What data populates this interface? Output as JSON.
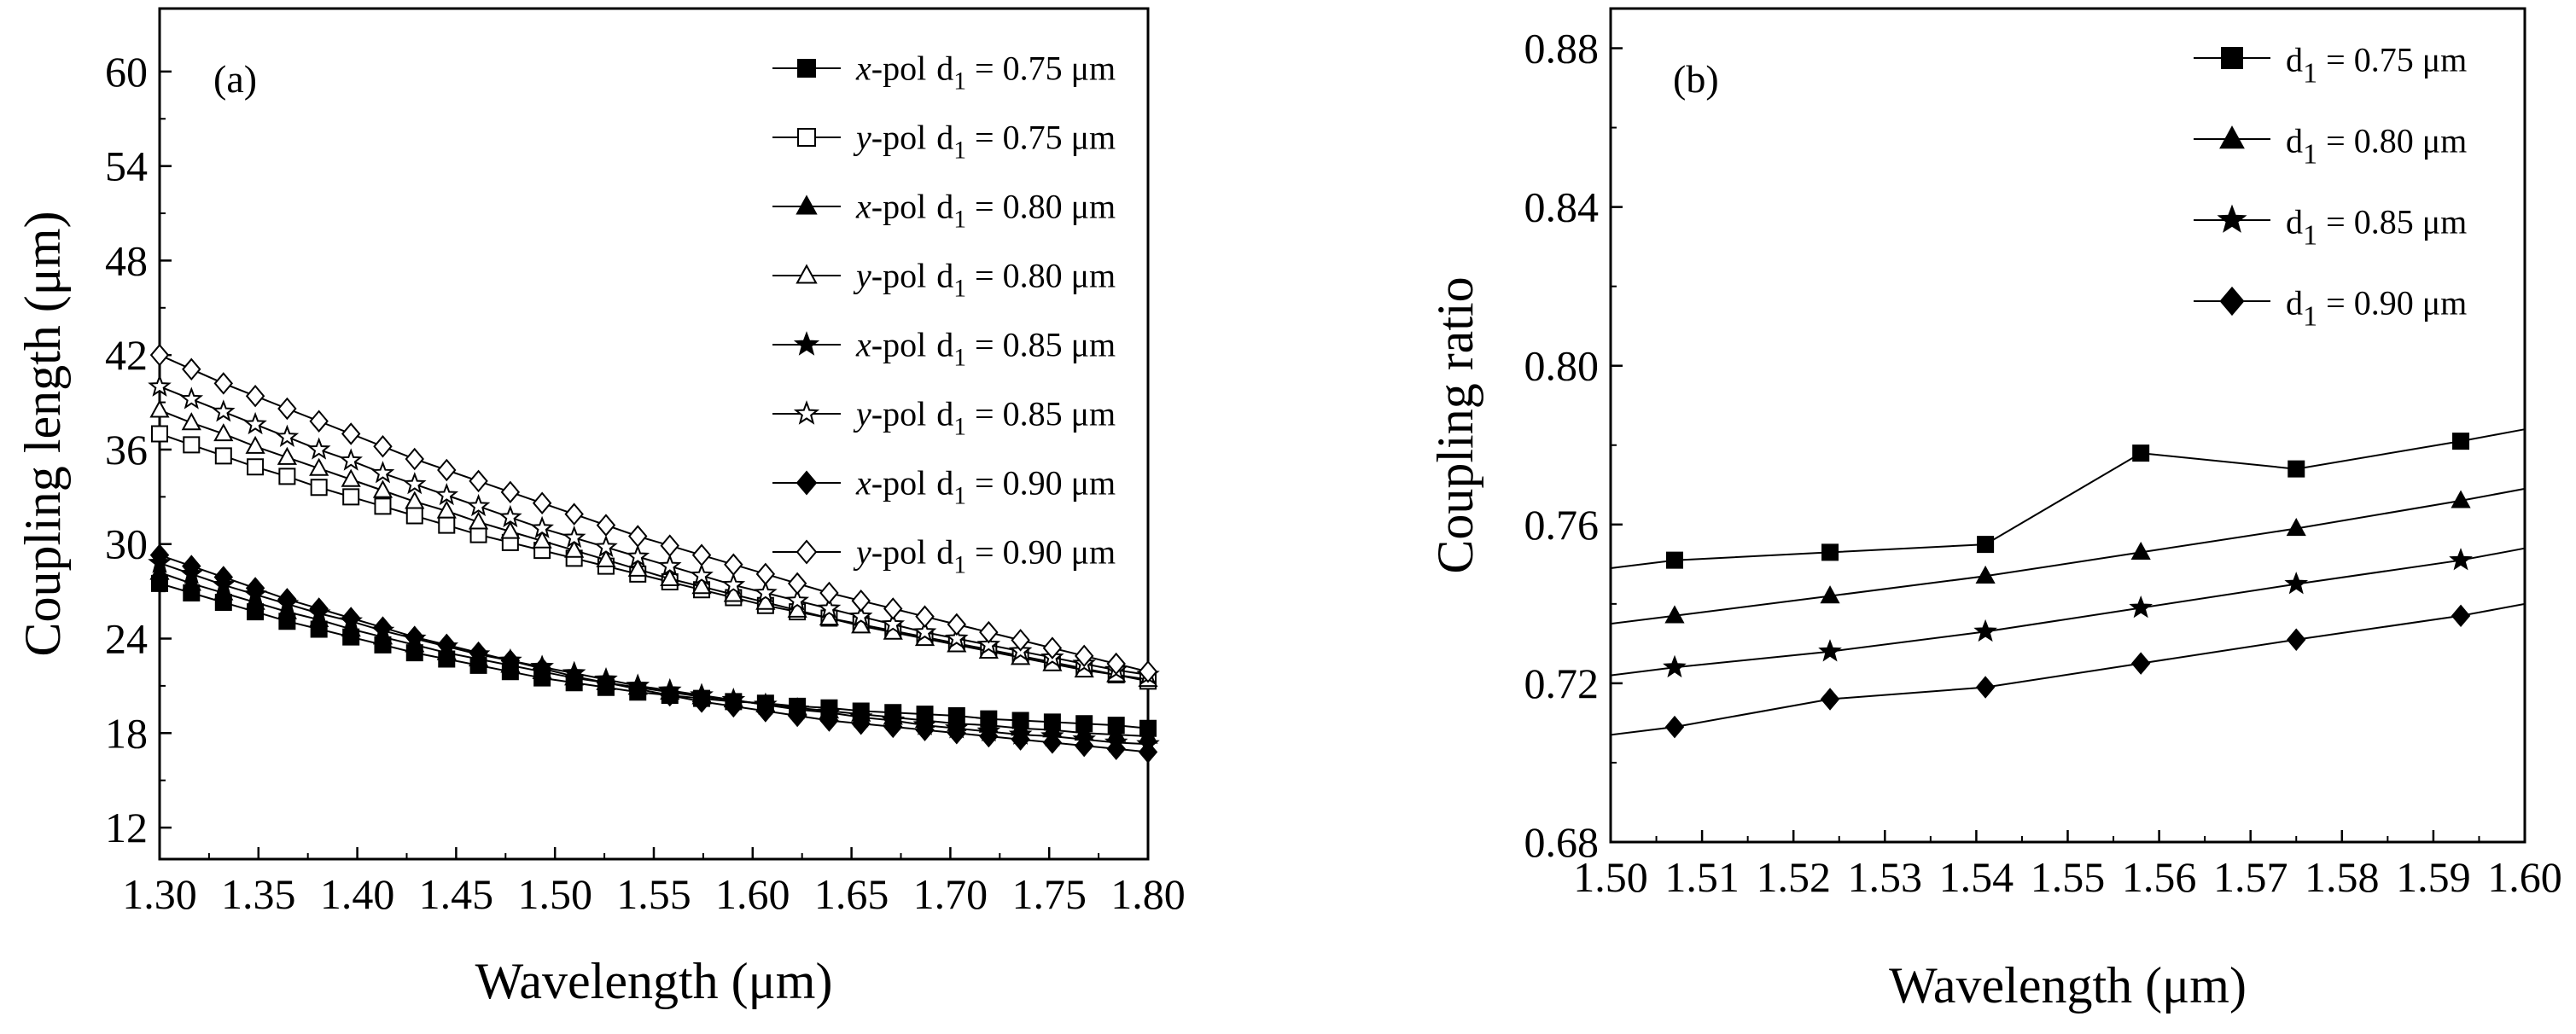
{
  "chart_data": [
    {
      "type": "line",
      "panel_label": "(a)",
      "xlabel": "Wavelength (μm)",
      "ylabel": "Coupling length (μm)",
      "xlim": [
        1.3,
        1.8
      ],
      "ylim": [
        10,
        64
      ],
      "x_ticks": [
        "1.30",
        "1.35",
        "1.40",
        "1.45",
        "1.50",
        "1.55",
        "1.60",
        "1.65",
        "1.70",
        "1.75",
        "1.80"
      ],
      "y_ticks": [
        "12",
        "18",
        "24",
        "30",
        "36",
        "42",
        "48",
        "54",
        "60"
      ],
      "x": [
        1.3,
        1.3161,
        1.3323,
        1.3484,
        1.3645,
        1.3806,
        1.3968,
        1.4129,
        1.429,
        1.4452,
        1.4613,
        1.4774,
        1.4935,
        1.5097,
        1.5258,
        1.5419,
        1.5581,
        1.5742,
        1.5903,
        1.6065,
        1.6226,
        1.6387,
        1.6548,
        1.671,
        1.6871,
        1.7032,
        1.7194,
        1.7355,
        1.7516,
        1.7677,
        1.7839,
        1.8
      ],
      "legend_position": "top-right",
      "series": [
        {
          "pol": "x",
          "pol_suffix": "-pol",
          "d_label": "d",
          "d_sub": "1",
          "d_text": " = 0.75 μm",
          "marker": "square",
          "filled": true,
          "values": [
            27.5,
            26.9,
            26.3,
            25.7,
            25.1,
            24.6,
            24.1,
            23.6,
            23.1,
            22.7,
            22.3,
            21.9,
            21.5,
            21.2,
            20.9,
            20.6,
            20.4,
            20.2,
            20.0,
            19.9,
            19.7,
            19.6,
            19.4,
            19.3,
            19.2,
            19.1,
            18.9,
            18.8,
            18.7,
            18.6,
            18.5,
            18.3
          ]
        },
        {
          "pol": "y",
          "pol_suffix": "-pol",
          "d_label": "d",
          "d_sub": "1",
          "d_text": " = 0.75 μm",
          "marker": "square",
          "filled": false,
          "values": [
            37.0,
            36.3,
            35.6,
            34.9,
            34.3,
            33.6,
            33.0,
            32.4,
            31.8,
            31.2,
            30.6,
            30.1,
            29.6,
            29.1,
            28.6,
            28.1,
            27.6,
            27.1,
            26.6,
            26.1,
            25.7,
            25.3,
            24.9,
            24.5,
            24.1,
            23.7,
            23.3,
            22.9,
            22.5,
            22.1,
            21.7,
            21.3
          ]
        },
        {
          "pol": "x",
          "pol_suffix": "-pol",
          "d_label": "d",
          "d_sub": "1",
          "d_text": " = 0.80 μm",
          "marker": "triangle",
          "filled": true,
          "values": [
            28.2,
            27.5,
            26.9,
            26.3,
            25.7,
            25.2,
            24.6,
            24.1,
            23.6,
            23.1,
            22.7,
            22.3,
            21.9,
            21.5,
            21.2,
            20.9,
            20.6,
            20.3,
            20.1,
            19.8,
            19.6,
            19.4,
            19.2,
            19.0,
            18.8,
            18.6,
            18.5,
            18.3,
            18.2,
            18.0,
            17.9,
            17.8
          ]
        },
        {
          "pol": "y",
          "pol_suffix": "-pol",
          "d_label": "d",
          "d_sub": "1",
          "d_text": " = 0.80 μm",
          "marker": "triangle",
          "filled": false,
          "values": [
            38.5,
            37.7,
            37.0,
            36.2,
            35.5,
            34.8,
            34.1,
            33.4,
            32.7,
            32.1,
            31.4,
            30.8,
            30.2,
            29.6,
            29.0,
            28.4,
            27.8,
            27.3,
            26.8,
            26.3,
            25.8,
            25.3,
            24.8,
            24.4,
            24.0,
            23.6,
            23.2,
            22.8,
            22.4,
            22.0,
            21.7,
            21.4
          ]
        },
        {
          "pol": "x",
          "pol_suffix": "-pol",
          "d_label": "d",
          "d_sub": "1",
          "d_text": " = 0.85 μm",
          "marker": "star",
          "filled": true,
          "values": [
            28.8,
            28.1,
            27.4,
            26.8,
            26.2,
            25.6,
            25.1,
            24.5,
            24.0,
            23.5,
            23.0,
            22.6,
            22.2,
            21.8,
            21.4,
            21.0,
            20.7,
            20.4,
            20.1,
            19.8,
            19.5,
            19.3,
            19.0,
            18.8,
            18.5,
            18.3,
            18.1,
            17.9,
            17.8,
            17.6,
            17.4,
            17.3
          ]
        },
        {
          "pol": "y",
          "pol_suffix": "-pol",
          "d_label": "d",
          "d_sub": "1",
          "d_text": " = 0.85 μm",
          "marker": "star",
          "filled": false,
          "values": [
            40.0,
            39.2,
            38.4,
            37.6,
            36.8,
            36.0,
            35.3,
            34.5,
            33.8,
            33.1,
            32.4,
            31.7,
            31.0,
            30.4,
            29.8,
            29.2,
            28.6,
            28.0,
            27.4,
            26.9,
            26.4,
            25.9,
            25.4,
            24.9,
            24.4,
            24.0,
            23.6,
            23.2,
            22.8,
            22.4,
            22.0,
            21.7
          ]
        },
        {
          "pol": "x",
          "pol_suffix": "-pol",
          "d_label": "d",
          "d_sub": "1",
          "d_text": " = 0.90 μm",
          "marker": "diamond",
          "filled": true,
          "values": [
            29.3,
            28.6,
            27.9,
            27.2,
            26.5,
            25.9,
            25.3,
            24.7,
            24.1,
            23.6,
            23.1,
            22.6,
            22.1,
            21.6,
            21.2,
            20.8,
            20.4,
            20.0,
            19.7,
            19.4,
            19.1,
            18.8,
            18.6,
            18.4,
            18.2,
            18.0,
            17.8,
            17.6,
            17.4,
            17.2,
            17.0,
            16.8
          ]
        },
        {
          "pol": "y",
          "pol_suffix": "-pol",
          "d_label": "d",
          "d_sub": "1",
          "d_text": " = 0.90 μm",
          "marker": "diamond",
          "filled": false,
          "values": [
            42.0,
            41.1,
            40.2,
            39.4,
            38.6,
            37.8,
            37.0,
            36.2,
            35.4,
            34.7,
            34.0,
            33.3,
            32.6,
            31.9,
            31.2,
            30.5,
            29.9,
            29.3,
            28.7,
            28.1,
            27.5,
            26.9,
            26.4,
            25.9,
            25.4,
            24.9,
            24.4,
            23.9,
            23.4,
            22.9,
            22.4,
            21.9
          ]
        }
      ]
    },
    {
      "type": "line",
      "panel_label": "(b)",
      "xlabel": "Wavelength (μm)",
      "ylabel": "Coupling ratio",
      "xlim": [
        1.5,
        1.6
      ],
      "ylim": [
        0.68,
        0.89
      ],
      "x_ticks": [
        "1.50",
        "1.51",
        "1.52",
        "1.53",
        "1.54",
        "1.55",
        "1.56",
        "1.57",
        "1.58",
        "1.59",
        "1.60"
      ],
      "y_ticks": [
        "0.68",
        "0.72",
        "0.76",
        "0.80",
        "0.84",
        "0.88"
      ],
      "legend_position": "top-right",
      "series": [
        {
          "d_label": "d",
          "d_sub": "1",
          "d_text": " = 0.75 μm",
          "marker": "square",
          "filled": true,
          "x": [
            1.5,
            1.507,
            1.524,
            1.541,
            1.558,
            1.575,
            1.593,
            1.6
          ],
          "values": [
            0.749,
            0.751,
            0.753,
            0.755,
            0.778,
            0.774,
            0.781,
            0.784
          ]
        },
        {
          "d_label": "d",
          "d_sub": "1",
          "d_text": " = 0.80 μm",
          "marker": "triangle",
          "filled": true,
          "x": [
            1.5,
            1.507,
            1.524,
            1.541,
            1.558,
            1.575,
            1.593,
            1.6
          ],
          "values": [
            0.735,
            0.737,
            0.742,
            0.747,
            0.753,
            0.759,
            0.766,
            0.769
          ]
        },
        {
          "d_label": "d",
          "d_sub": "1",
          "d_text": " = 0.85 μm",
          "marker": "star",
          "filled": true,
          "x": [
            1.5,
            1.507,
            1.524,
            1.541,
            1.558,
            1.575,
            1.593,
            1.6
          ],
          "values": [
            0.722,
            0.724,
            0.728,
            0.733,
            0.739,
            0.745,
            0.751,
            0.754
          ]
        },
        {
          "d_label": "d",
          "d_sub": "1",
          "d_text": " = 0.90 μm",
          "marker": "diamond",
          "filled": true,
          "x": [
            1.5,
            1.507,
            1.524,
            1.541,
            1.558,
            1.575,
            1.593,
            1.6
          ],
          "values": [
            0.707,
            0.709,
            0.716,
            0.719,
            0.725,
            0.731,
            0.737,
            0.74
          ]
        }
      ]
    }
  ]
}
